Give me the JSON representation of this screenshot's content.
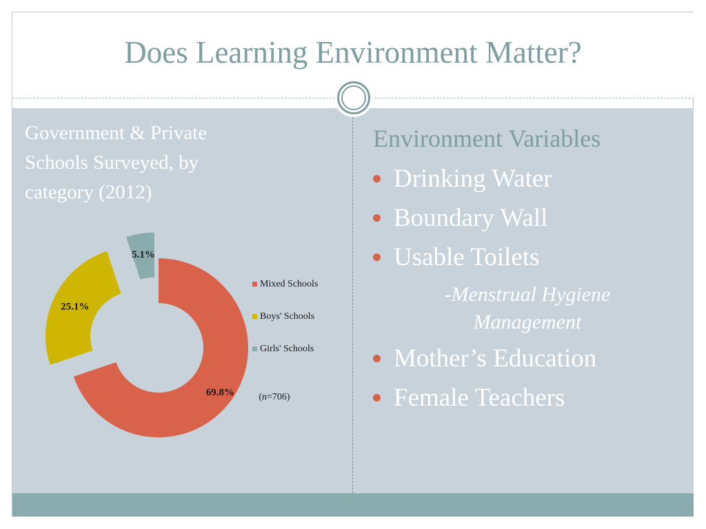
{
  "title": "Does Learning Environment Matter?",
  "left_panel": {
    "heading": "Government & Private\nSchools Surveyed, by\ncategory  (2012)"
  },
  "chart_data": {
    "type": "pie",
    "subtype": "doughnut",
    "categories": [
      "Mixed Schools",
      "Boys' Schools",
      "Girls' Schools"
    ],
    "values": [
      69.8,
      25.1,
      5.1
    ],
    "labels": [
      "69.8%",
      "25.1%",
      "5.1%"
    ],
    "colors": [
      "#d9634a",
      "#cfb600",
      "#8aabae"
    ],
    "exploded": [
      false,
      true,
      true
    ],
    "legend_position": "right",
    "annotation": "(n=706)"
  },
  "right_panel": {
    "heading": "Environment Variables",
    "items": [
      "Drinking Water",
      "Boundary Wall",
      "Usable Toilets",
      "Mother’s Education",
      "Female Teachers"
    ],
    "sub_item": "-Menstrual Hygiene\nManagement"
  },
  "colors": {
    "accent": "#7f9ea1",
    "body_background": "#c7d2da",
    "footer": "#8aabae",
    "bullet": "#d9634a"
  }
}
